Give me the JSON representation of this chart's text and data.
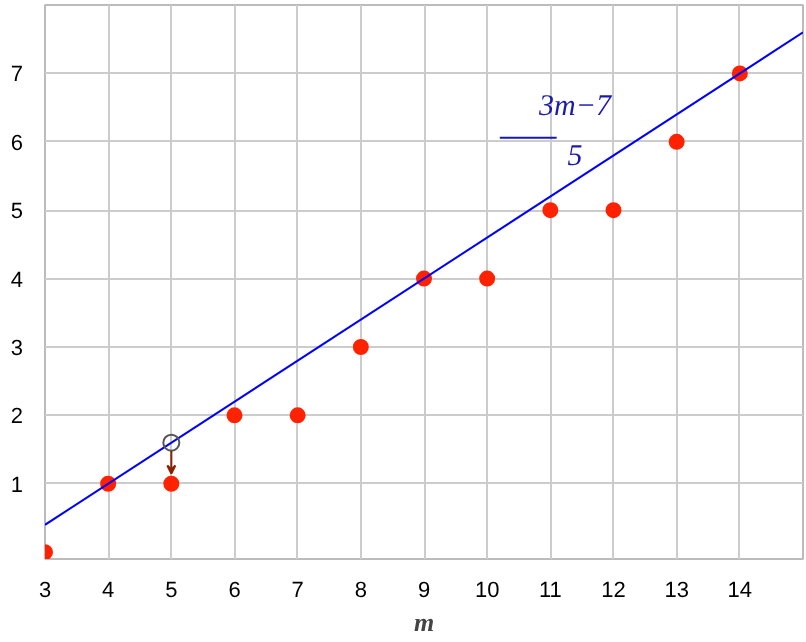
{
  "chart_data": {
    "type": "scatter",
    "xlabel": "m",
    "xlim": [
      3,
      15
    ],
    "ylim": [
      -0.1,
      8
    ],
    "xticks": [
      3,
      4,
      5,
      6,
      7,
      8,
      9,
      10,
      11,
      12,
      13,
      14
    ],
    "yticks": [
      1,
      2,
      3,
      4,
      5,
      6,
      7
    ],
    "grid": true,
    "series": [
      {
        "color": "#ff2200",
        "marker": "circle",
        "x": [
          3,
          4,
          5,
          6,
          7,
          8,
          9,
          10,
          11,
          12,
          13,
          14
        ],
        "values": [
          0,
          1,
          1,
          2,
          2,
          3,
          4,
          4,
          5,
          5,
          6,
          7
        ]
      },
      {
        "type": "line",
        "color": "#0000ff",
        "marker": "none",
        "x": [
          3,
          15
        ],
        "values": [
          0.4,
          7.6
        ]
      },
      {
        "color": "#555555",
        "marker": "circle",
        "x": [
          5
        ],
        "values": [
          1.6
        ]
      }
    ],
    "annotations": [
      "3m−7",
      "5"
    ]
  }
}
